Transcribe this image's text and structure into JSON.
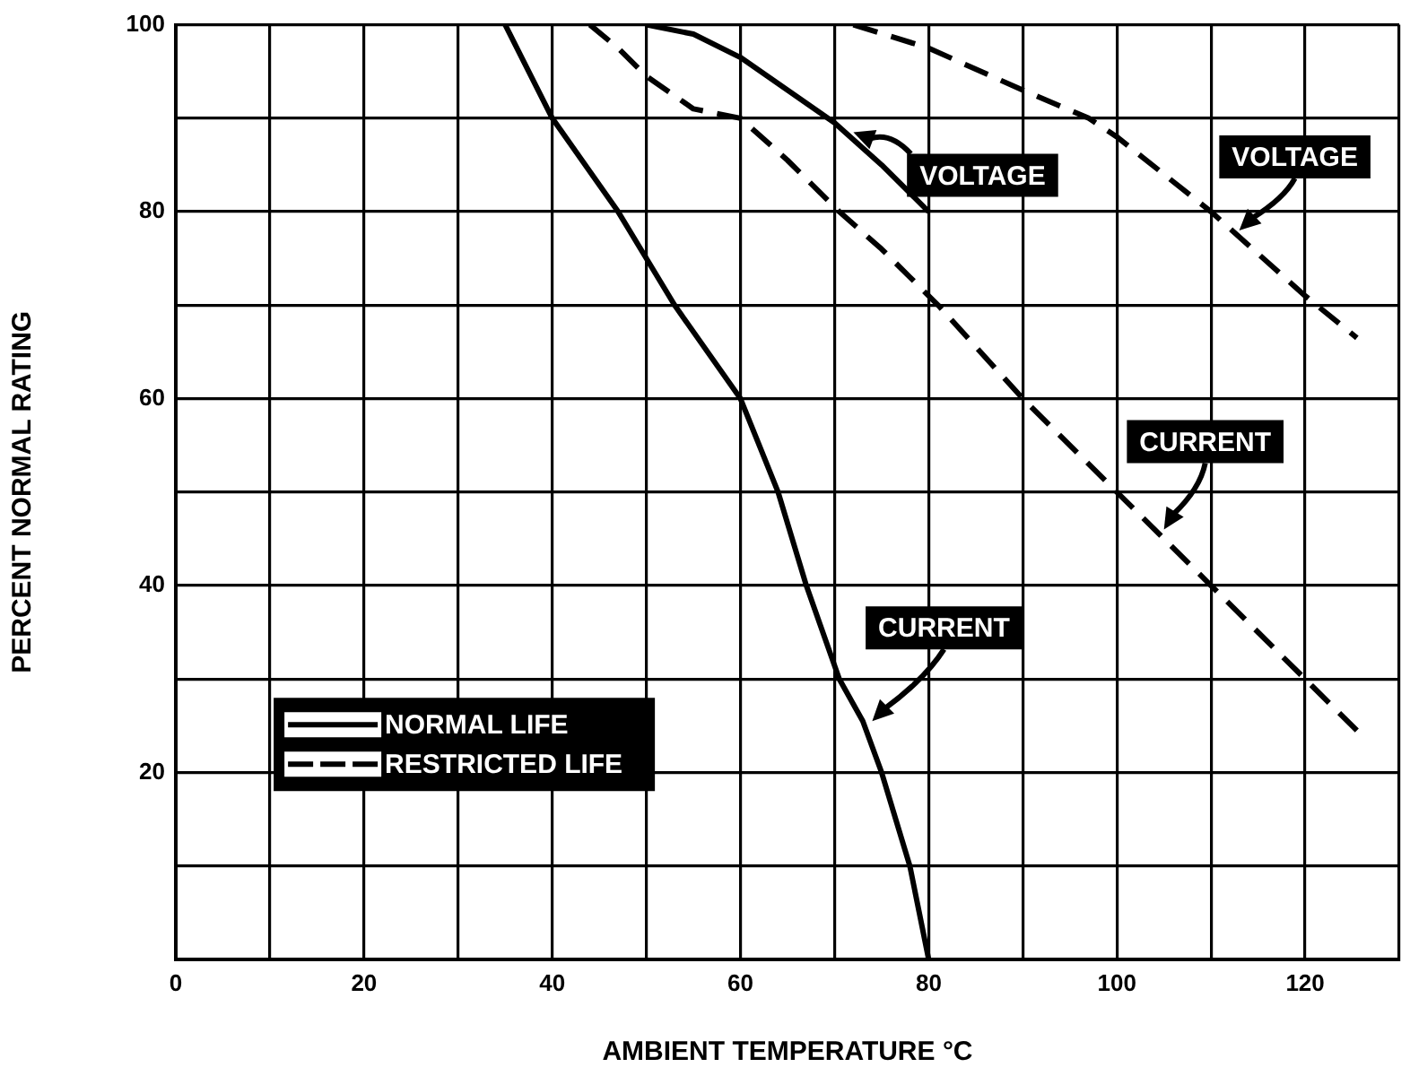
{
  "chart_data": {
    "type": "line",
    "xlabel": "AMBIENT TEMPERATURE °C",
    "ylabel": "PERCENT NORMAL RATING",
    "xlim": [
      0,
      130
    ],
    "xticks": [
      0,
      {
        "value": 10,
        "label": null
      },
      20,
      {
        "value": 30,
        "label": null
      },
      40,
      {
        "value": 50,
        "label": null
      },
      60,
      {
        "value": 70,
        "label": null
      },
      80,
      {
        "value": 90,
        "label": null
      },
      100,
      {
        "value": 110,
        "label": null
      },
      120,
      {
        "value": 130,
        "label": null
      }
    ],
    "ylim": [
      0,
      100
    ],
    "yticks": [
      {
        "value": 0,
        "label": null
      },
      {
        "value": 10,
        "label": null
      },
      20,
      {
        "value": 30,
        "label": null
      },
      40,
      {
        "value": 50,
        "label": null
      },
      60,
      {
        "value": 70,
        "label": null
      },
      80,
      {
        "value": 90,
        "label": null
      },
      100
    ],
    "grid": true,
    "legend": "bottom left",
    "marker": "none",
    "series": [
      {
        "name": "NORMAL LIFE",
        "color": "#000000",
        "line_style": "solid",
        "x": [
          35,
          40,
          47,
          53,
          60,
          64,
          67,
          70.5,
          73,
          75,
          78,
          80
        ],
        "values": [
          100,
          90,
          80,
          70,
          60,
          50,
          40,
          30,
          25.5,
          20,
          10,
          0
        ]
      },
      {
        "color": "#000000",
        "line_style": "solid",
        "x": [
          50,
          55,
          60,
          65,
          70,
          75,
          80
        ],
        "values": [
          100,
          99,
          96.5,
          93,
          89.5,
          85,
          80
        ]
      },
      {
        "name": "RESTRICTED LIFE",
        "color": "#000000",
        "line_style": "dashed",
        "x": [
          44,
          47,
          50,
          55,
          60,
          65,
          70.5,
          75,
          81,
          90,
          100,
          110,
          120,
          125.5
        ],
        "values": [
          100,
          97.5,
          94.5,
          91,
          90,
          85.5,
          80,
          76,
          70,
          60,
          50,
          40,
          30,
          24.5
        ]
      },
      {
        "color": "#000000",
        "line_style": "dashed",
        "x": [
          72,
          80,
          90,
          97,
          100,
          110,
          120,
          125.5
        ],
        "values": [
          100,
          97.5,
          93,
          90,
          88,
          80,
          71,
          66.5
        ]
      }
    ],
    "annotations": [
      {
        "text": "VOLTAGE",
        "x": 72,
        "y": 88.5
      },
      {
        "text": "VOLTAGE",
        "x": 113,
        "y": 78
      },
      {
        "text": "CURRENT",
        "x": 105,
        "y": 46
      },
      {
        "text": "CURRENT",
        "x": 74,
        "y": 25.5
      }
    ]
  }
}
